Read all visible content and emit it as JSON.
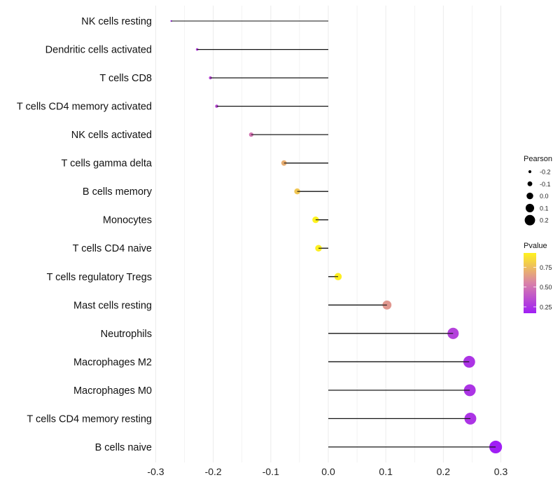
{
  "chart_data": {
    "type": "lollipop",
    "title": "",
    "xlabel": "",
    "ylabel": "",
    "xlim": [
      -0.32,
      0.32
    ],
    "x_ticks": [
      -0.3,
      -0.2,
      -0.1,
      0.0,
      0.1,
      0.2,
      0.3
    ],
    "x_tick_labels": [
      "-0.3",
      "-0.2",
      "-0.1",
      "0.0",
      "0.1",
      "0.2",
      "0.3"
    ],
    "grid": true,
    "categories": [
      "NK cells resting",
      "Dendritic cells activated",
      "T cells CD8",
      "T cells CD4 memory activated",
      "NK cells activated",
      "T cells gamma delta",
      "B cells memory",
      "Monocytes",
      "T cells CD4 naive",
      "T cells regulatory  Tregs ",
      "Mast cells resting",
      "Neutrophils",
      "Macrophages M2",
      "Macrophages M0",
      "T cells CD4 memory resting",
      "B cells naive"
    ],
    "pearson": [
      -0.273,
      -0.228,
      -0.205,
      -0.194,
      -0.134,
      -0.077,
      -0.054,
      -0.022,
      -0.017,
      0.017,
      0.102,
      0.217,
      0.245,
      0.246,
      0.247,
      0.291
    ],
    "pvalue": [
      0.18,
      0.3,
      0.33,
      0.33,
      0.5,
      0.7,
      0.78,
      0.93,
      0.92,
      0.92,
      0.62,
      0.3,
      0.25,
      0.25,
      0.25,
      0.17
    ],
    "legend_size": {
      "title": "Pearson",
      "values": [
        -0.2,
        -0.1,
        0.0,
        0.1,
        0.2
      ],
      "labels": [
        "-0.2",
        "-0.1",
        "0.0",
        "0.1",
        "0.2"
      ]
    },
    "legend_color": {
      "title": "Pvalue",
      "range": [
        0.17,
        0.93
      ],
      "ticks": [
        0.25,
        0.5,
        0.75
      ],
      "labels": [
        "0.25",
        "0.50",
        "0.75"
      ],
      "colors": [
        "#a01ff5",
        "#d982a8",
        "#fff21e"
      ]
    },
    "legend_placement": "right"
  }
}
